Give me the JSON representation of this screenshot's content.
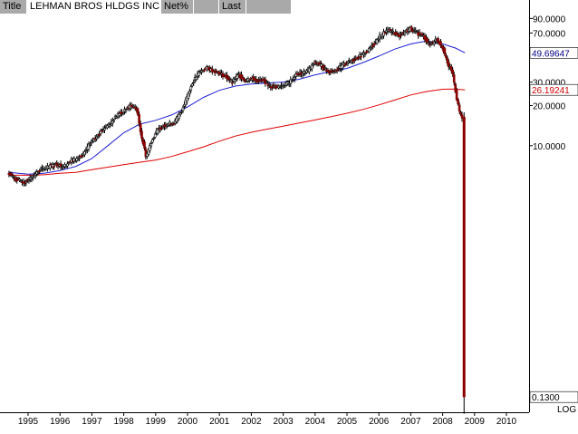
{
  "header": {
    "title_label": "Title",
    "security_name": "LEHMAN BROS HLDGS INC",
    "netpct_label": "Net%",
    "netpct_value": "",
    "last_label": "Last",
    "last_value": ""
  },
  "colors": {
    "up_candle": "#000000",
    "down_candle": "#8b0000",
    "ma_blue": "#1f1fd6",
    "ma_red": "#e00000",
    "header_gray": "#a9a9a9"
  },
  "chart_data": {
    "type": "candlestick",
    "title": "LEHMAN BROS HLDGS INC",
    "y_scale": "log",
    "scale_label": "LOG",
    "ylim": [
      0.1,
      120
    ],
    "xlim": [
      1994.2,
      2010.0
    ],
    "x_tick_labels": [
      "1995",
      "1996",
      "1997",
      "1998",
      "1999",
      "2000",
      "2001",
      "2002",
      "2003",
      "2004",
      "2005",
      "2006",
      "2007",
      "2008",
      "2009",
      "2010"
    ],
    "y_tick_labels": [
      {
        "value": 90,
        "label": "90.0000"
      },
      {
        "value": 70,
        "label": "70.0000"
      },
      {
        "value": 30,
        "label": "30.0000"
      },
      {
        "value": 20,
        "label": "20.0000"
      },
      {
        "value": 10,
        "label": "10.0000"
      }
    ],
    "price_markers": [
      {
        "value": 49.69647,
        "label": "49.69647",
        "color": "#000080",
        "bg": "#ffffff"
      },
      {
        "value": 26.19241,
        "label": "26.19241",
        "color": "#cc0000",
        "bg": "#ffffff"
      },
      {
        "value": 0.13,
        "label": "0.1300",
        "color": "#000000",
        "bg": "#ffffff"
      }
    ],
    "price_path": [
      [
        1994.4,
        6.2
      ],
      [
        1994.6,
        5.6
      ],
      [
        1994.9,
        5.3
      ],
      [
        1995.1,
        5.8
      ],
      [
        1995.4,
        6.6
      ],
      [
        1995.7,
        7.0
      ],
      [
        1995.9,
        7.3
      ],
      [
        1996.1,
        7.0
      ],
      [
        1996.4,
        7.8
      ],
      [
        1996.7,
        8.3
      ],
      [
        1996.9,
        10.0
      ],
      [
        1997.1,
        11.5
      ],
      [
        1997.3,
        13.0
      ],
      [
        1997.6,
        15.0
      ],
      [
        1997.8,
        17.0
      ],
      [
        1998.0,
        18.0
      ],
      [
        1998.2,
        20.0
      ],
      [
        1998.4,
        19.0
      ],
      [
        1998.55,
        12.0
      ],
      [
        1998.7,
        8.3
      ],
      [
        1998.85,
        10.5
      ],
      [
        1999.0,
        12.5
      ],
      [
        1999.2,
        14.0
      ],
      [
        1999.4,
        14.5
      ],
      [
        1999.6,
        15.0
      ],
      [
        1999.8,
        18.0
      ],
      [
        2000.0,
        24.0
      ],
      [
        2000.2,
        31.0
      ],
      [
        2000.4,
        36.0
      ],
      [
        2000.6,
        38.0
      ],
      [
        2000.8,
        37.0
      ],
      [
        2001.0,
        35.0
      ],
      [
        2001.2,
        33.0
      ],
      [
        2001.4,
        30.0
      ],
      [
        2001.6,
        34.0
      ],
      [
        2001.8,
        31.0
      ],
      [
        2002.0,
        32.0
      ],
      [
        2002.2,
        31.0
      ],
      [
        2002.4,
        30.5
      ],
      [
        2002.6,
        28.0
      ],
      [
        2002.8,
        27.5
      ],
      [
        2003.0,
        28.5
      ],
      [
        2003.2,
        30.0
      ],
      [
        2003.4,
        34.0
      ],
      [
        2003.6,
        35.0
      ],
      [
        2003.8,
        37.0
      ],
      [
        2004.0,
        42.0
      ],
      [
        2004.2,
        40.0
      ],
      [
        2004.4,
        36.0
      ],
      [
        2004.6,
        36.5
      ],
      [
        2004.8,
        39.0
      ],
      [
        2005.0,
        42.0
      ],
      [
        2005.2,
        44.0
      ],
      [
        2005.4,
        47.0
      ],
      [
        2005.6,
        50.0
      ],
      [
        2005.8,
        56.0
      ],
      [
        2006.0,
        65.0
      ],
      [
        2006.2,
        72.0
      ],
      [
        2006.4,
        73.0
      ],
      [
        2006.6,
        66.0
      ],
      [
        2006.8,
        71.0
      ],
      [
        2007.0,
        76.0
      ],
      [
        2007.2,
        70.0
      ],
      [
        2007.4,
        66.0
      ],
      [
        2007.6,
        57.0
      ],
      [
        2007.8,
        63.0
      ],
      [
        2008.0,
        55.0
      ],
      [
        2008.15,
        41.0
      ],
      [
        2008.3,
        36.0
      ],
      [
        2008.45,
        22.0
      ],
      [
        2008.55,
        17.0
      ],
      [
        2008.62,
        16.5
      ],
      [
        2008.7,
        0.13
      ]
    ],
    "series": [
      {
        "name": "",
        "color": "#1f1fd6",
        "values": [
          [
            1994.4,
            6.3
          ],
          [
            1995.0,
            6.1
          ],
          [
            1995.5,
            6.2
          ],
          [
            1996.0,
            6.5
          ],
          [
            1996.5,
            7.0
          ],
          [
            1997.0,
            8.0
          ],
          [
            1997.5,
            10.0
          ],
          [
            1998.0,
            12.5
          ],
          [
            1998.5,
            14.5
          ],
          [
            1999.0,
            15.5
          ],
          [
            1999.5,
            17.0
          ],
          [
            2000.0,
            19.5
          ],
          [
            2000.5,
            23.0
          ],
          [
            2001.0,
            26.0
          ],
          [
            2001.5,
            28.0
          ],
          [
            2002.0,
            29.0
          ],
          [
            2002.5,
            29.5
          ],
          [
            2003.0,
            30.0
          ],
          [
            2003.5,
            31.5
          ],
          [
            2004.0,
            34.0
          ],
          [
            2004.5,
            36.0
          ],
          [
            2005.0,
            38.0
          ],
          [
            2005.5,
            42.0
          ],
          [
            2006.0,
            47.0
          ],
          [
            2006.5,
            53.0
          ],
          [
            2007.0,
            58.0
          ],
          [
            2007.5,
            61.0
          ],
          [
            2008.0,
            58.0
          ],
          [
            2008.4,
            54.0
          ],
          [
            2008.7,
            49.7
          ]
        ]
      },
      {
        "name": "",
        "color": "#e00000",
        "values": [
          [
            1994.4,
            6.0
          ],
          [
            1995.0,
            6.0
          ],
          [
            1995.5,
            6.05
          ],
          [
            1996.0,
            6.2
          ],
          [
            1996.5,
            6.3
          ],
          [
            1997.0,
            6.6
          ],
          [
            1997.5,
            6.9
          ],
          [
            1998.0,
            7.2
          ],
          [
            1998.5,
            7.5
          ],
          [
            1999.0,
            7.8
          ],
          [
            1999.5,
            8.3
          ],
          [
            2000.0,
            9.0
          ],
          [
            2000.5,
            9.8
          ],
          [
            2001.0,
            10.8
          ],
          [
            2001.5,
            11.8
          ],
          [
            2002.0,
            12.6
          ],
          [
            2002.5,
            13.3
          ],
          [
            2003.0,
            14.0
          ],
          [
            2003.5,
            14.8
          ],
          [
            2004.0,
            15.6
          ],
          [
            2004.5,
            16.5
          ],
          [
            2005.0,
            17.5
          ],
          [
            2005.5,
            18.7
          ],
          [
            2006.0,
            20.2
          ],
          [
            2006.5,
            22.0
          ],
          [
            2007.0,
            24.0
          ],
          [
            2007.5,
            25.5
          ],
          [
            2008.0,
            26.5
          ],
          [
            2008.4,
            26.6
          ],
          [
            2008.7,
            26.19
          ]
        ]
      }
    ]
  }
}
